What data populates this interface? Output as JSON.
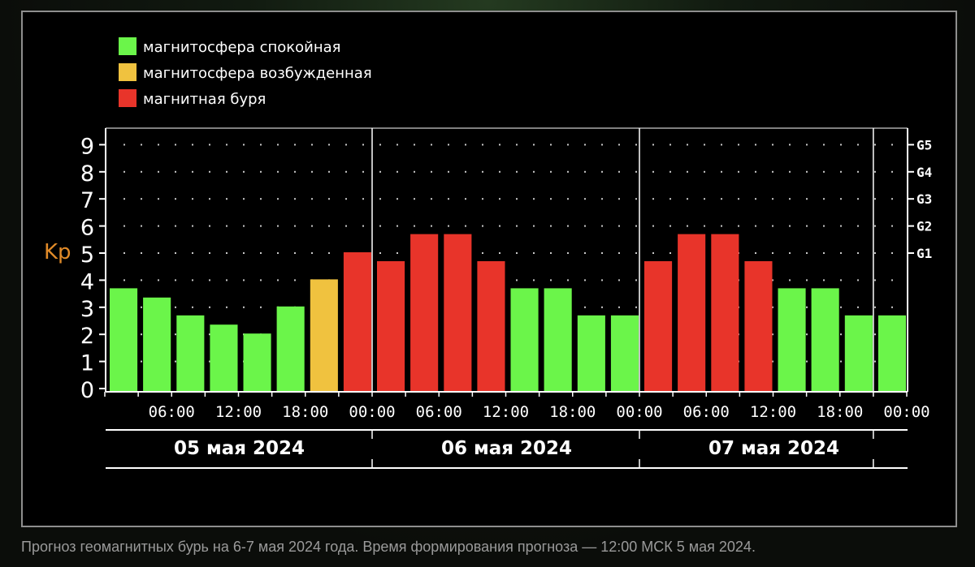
{
  "caption": "Прогноз геомагнитных бурь на 6-7 мая 2024 года. Время формирования прогноза — 12:00 МСК 5 мая 2024.",
  "colors": {
    "quiet": "#6bf54a",
    "excited": "#f0c23f",
    "storm": "#e8342a",
    "kp_label": "#e08a28",
    "frame": "#8e8e8e"
  },
  "legend": [
    {
      "label": "магнитосфера спокойная",
      "status": "quiet"
    },
    {
      "label": "магнитосфера возбужденная",
      "status": "excited"
    },
    {
      "label": "магнитная буря",
      "status": "storm"
    }
  ],
  "chart_data": {
    "type": "bar",
    "ylabel": "Kp",
    "ylim": [
      0,
      9
    ],
    "y_ticks": [
      "0",
      "1",
      "2",
      "3",
      "4",
      "5",
      "6",
      "7",
      "8",
      "9"
    ],
    "storm_levels": [
      {
        "label": "G1",
        "kp": 5
      },
      {
        "label": "G2",
        "kp": 6
      },
      {
        "label": "G3",
        "kp": 7
      },
      {
        "label": "G4",
        "kp": 8
      },
      {
        "label": "G5",
        "kp": 9
      }
    ],
    "x_tick_labels": [
      "06:00",
      "12:00",
      "18:00",
      "00:00",
      "06:00",
      "12:00",
      "18:00",
      "00:00",
      "06:00",
      "12:00",
      "18:00",
      "00:00"
    ],
    "days": [
      "05 мая 2024",
      "06 мая 2024",
      "07 мая 2024"
    ],
    "grid": true,
    "legend_position": "top-left",
    "values": [
      3.67,
      3.33,
      2.67,
      2.33,
      2.0,
      3.0,
      4.0,
      5.0,
      4.67,
      5.67,
      5.67,
      4.67,
      3.67,
      3.67,
      2.67,
      2.67,
      4.67,
      5.67,
      5.67,
      4.67,
      3.67,
      3.67,
      2.67,
      2.67
    ],
    "statuses": [
      "quiet",
      "quiet",
      "quiet",
      "quiet",
      "quiet",
      "quiet",
      "excited",
      "storm",
      "storm",
      "storm",
      "storm",
      "storm",
      "quiet",
      "quiet",
      "quiet",
      "quiet",
      "storm",
      "storm",
      "storm",
      "storm",
      "quiet",
      "quiet",
      "quiet",
      "quiet"
    ]
  }
}
